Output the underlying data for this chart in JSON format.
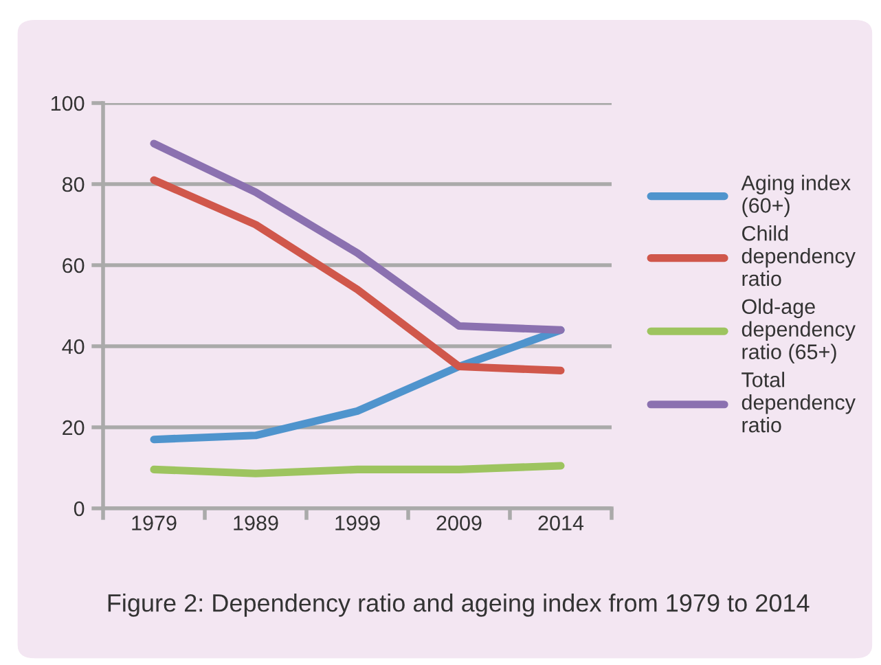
{
  "chart_data": {
    "type": "line",
    "categories": [
      "1979",
      "1989",
      "1999",
      "2009",
      "2014"
    ],
    "series": [
      {
        "name": "Aging index (60+)",
        "color": "#4f94cd",
        "values": [
          17,
          18,
          24,
          35,
          44
        ]
      },
      {
        "name": "Child dependency ratio",
        "color": "#d0574b",
        "values": [
          81,
          70,
          54,
          35,
          34
        ]
      },
      {
        "name": "Old-age dependency ratio (65+)",
        "color": "#9dc45f",
        "values": [
          9.6,
          8.6,
          9.6,
          9.6,
          10.5
        ]
      },
      {
        "name": "Total dependency ratio",
        "color": "#8b71b0",
        "values": [
          90,
          78,
          63,
          45,
          44
        ]
      }
    ],
    "ylim": [
      0,
      100
    ],
    "yticks": [
      0,
      20,
      40,
      60,
      80,
      100
    ],
    "grid": "y",
    "legend": "right",
    "marker": "none",
    "line_style": "solid",
    "annotations": [
      "Figure 2: Dependency ratio and ageing index from 1979 to 2014"
    ]
  }
}
